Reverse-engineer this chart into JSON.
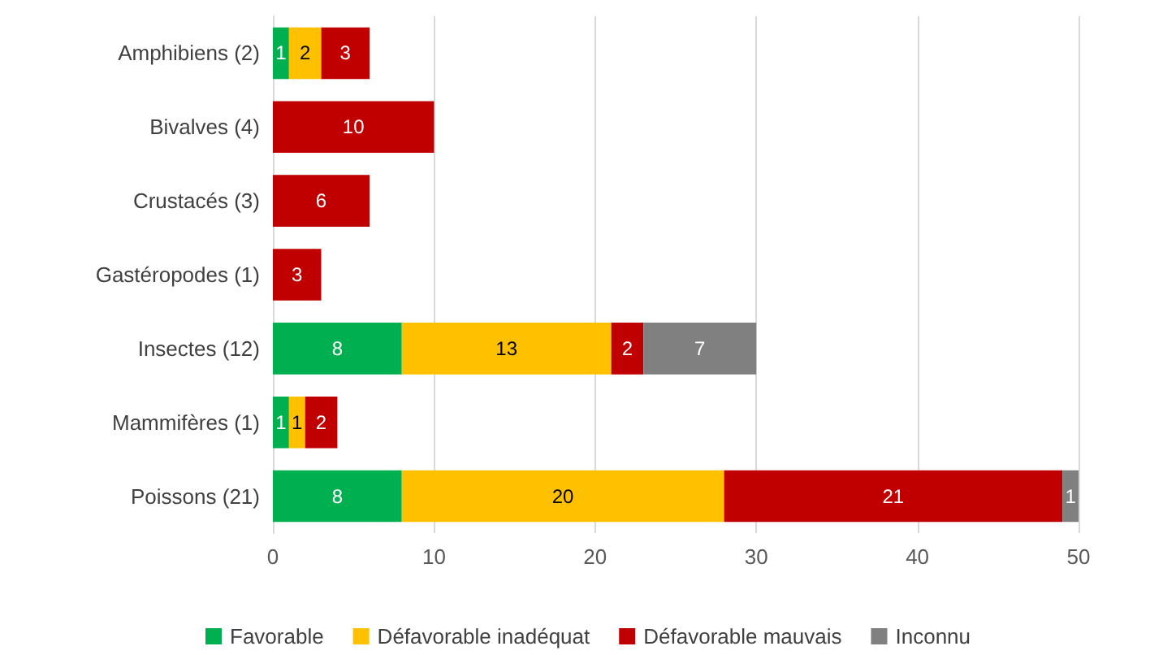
{
  "chart_data": {
    "type": "bar",
    "orientation": "horizontal",
    "stacked": true,
    "data_labels": true,
    "grid": "x",
    "legend": "bottom",
    "categories": [
      "Amphibiens (2)",
      "Bivalves (4)",
      "Crustacés (3)",
      "Gastéropodes (1)",
      "Insectes (12)",
      "Mammifères (1)",
      "Poissons (21)"
    ],
    "xlim": [
      0,
      50
    ],
    "xticks": [
      0,
      10,
      20,
      30,
      40,
      50
    ],
    "series": [
      {
        "name": "Favorable",
        "color": "#00b050",
        "values": [
          1,
          null,
          null,
          null,
          8,
          1,
          8
        ]
      },
      {
        "name": "Défavorable inadéquat",
        "color": "#ffc000",
        "values": [
          2,
          null,
          null,
          null,
          13,
          1,
          20
        ]
      },
      {
        "name": "Défavorable mauvais",
        "color": "#c00000",
        "values": [
          3,
          10,
          6,
          3,
          2,
          2,
          21
        ]
      },
      {
        "name": "Inconnu",
        "color": "#808080",
        "values": [
          null,
          null,
          null,
          null,
          7,
          null,
          1
        ]
      }
    ]
  }
}
